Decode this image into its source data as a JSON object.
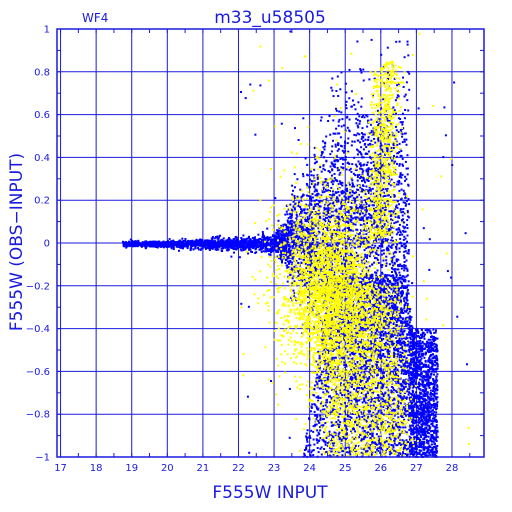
{
  "chart_data": {
    "type": "scatter",
    "title": "m33_u58505",
    "panel_label": "WF4",
    "xlabel": "F555W  INPUT",
    "ylabel": "F555W  (OBS−INPUT)",
    "xlim": [
      16.9,
      28.9
    ],
    "ylim": [
      -1,
      1
    ],
    "x_ticks": [
      17,
      18,
      19,
      20,
      21,
      22,
      23,
      24,
      25,
      26,
      27,
      28
    ],
    "y_ticks": [
      -1,
      -0.8,
      -0.6,
      -0.4,
      -0.2,
      0,
      0.2,
      0.4,
      0.6,
      0.8,
      1
    ],
    "x_tick_labels": [
      "17",
      "18",
      "19",
      "20",
      "21",
      "22",
      "23",
      "24",
      "25",
      "26",
      "27",
      "28"
    ],
    "y_tick_labels": [
      "−1",
      "−0.8",
      "−0.6",
      "−0.4",
      "−0.2",
      "0",
      "0.2",
      "0.4",
      "0.6",
      "0.8",
      "1"
    ],
    "grid": true,
    "colors": {
      "axes": "#1a1ae0",
      "grid": "#1a1ae0",
      "series_blue": "#0000ff",
      "series_yellow": "#ffff00"
    },
    "series": [
      {
        "color": "#0000ff",
        "description_points": [
          {
            "x": 18.8,
            "y": 0.0
          },
          {
            "x": 19.5,
            "y": 0.0
          },
          {
            "x": 20.5,
            "y": -0.01
          },
          {
            "x": 21.5,
            "y": -0.01
          },
          {
            "x": 22.0,
            "y": 0.0
          },
          {
            "x": 22.5,
            "y": -0.01
          },
          {
            "x": 23.0,
            "y": 0.0
          },
          {
            "x": 23.5,
            "y": 0.05
          },
          {
            "x": 24.0,
            "y": 0.1
          },
          {
            "x": 24.5,
            "y": 0.15
          },
          {
            "x": 25.0,
            "y": 0.25
          },
          {
            "x": 25.5,
            "y": 0.45
          },
          {
            "x": 25.8,
            "y": 0.55
          },
          {
            "x": 25.0,
            "y": -0.2
          },
          {
            "x": 26.0,
            "y": -0.5
          },
          {
            "x": 26.5,
            "y": -0.8
          },
          {
            "x": 27.0,
            "y": -0.95
          },
          {
            "x": 27.5,
            "y": -0.9
          }
        ]
      },
      {
        "color": "#ffff00",
        "description_points": [
          {
            "x": 23.5,
            "y": -0.3
          },
          {
            "x": 24.0,
            "y": -0.1
          },
          {
            "x": 24.5,
            "y": -0.15
          },
          {
            "x": 25.0,
            "y": -0.3
          },
          {
            "x": 25.5,
            "y": -0.2
          },
          {
            "x": 26.0,
            "y": 0.3
          },
          {
            "x": 26.2,
            "y": 0.7
          },
          {
            "x": 26.5,
            "y": 0.8
          },
          {
            "x": 25.0,
            "y": -0.6
          },
          {
            "x": 25.5,
            "y": -0.8
          },
          {
            "x": 26.0,
            "y": -0.9
          },
          {
            "x": 27.0,
            "y": -0.95
          }
        ]
      }
    ]
  }
}
